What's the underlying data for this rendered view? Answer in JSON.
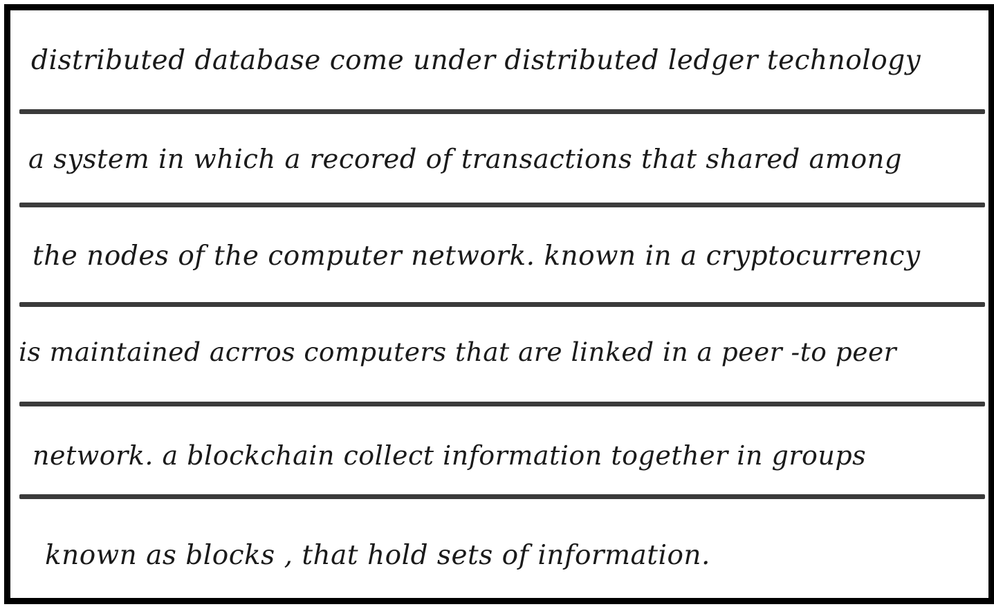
{
  "lines": [
    "distributed database come under distributed ledger technology",
    "a system in which a recored of transactions that shared among",
    "the nodes of the computer network. known in a cryptocurrency",
    "is maintained acrros computers that are linked in a peer -to peer",
    "network. a blockchain collect information together in groups",
    "known as blocks , that hold sets of information."
  ]
}
